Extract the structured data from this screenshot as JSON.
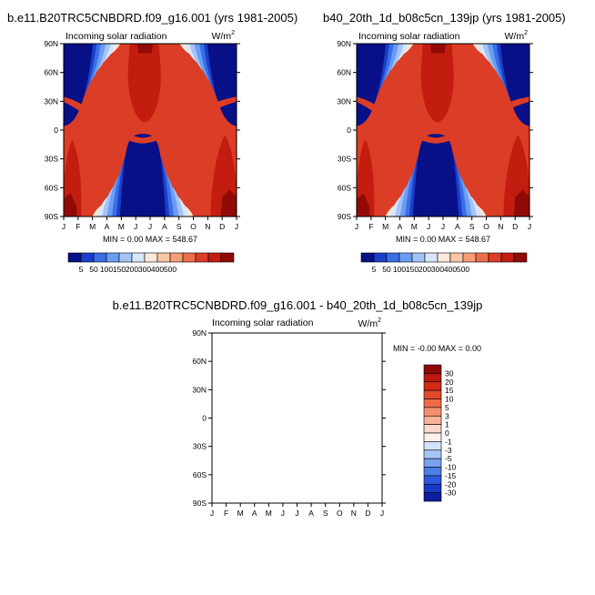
{
  "chart_data": [
    {
      "type": "heatmap",
      "title": "b.e11.B20TRC5CNBDRD.f09_g16.001 (yrs 1981-2005)",
      "subtitle": "Incoming solar radiation",
      "units": "W/m",
      "units_sup": "2",
      "x_ticks": [
        "J",
        "F",
        "M",
        "A",
        "M",
        "J",
        "J",
        "A",
        "S",
        "O",
        "N",
        "D",
        "J"
      ],
      "y_ticks": [
        "90N",
        "60N",
        "30N",
        "0",
        "30S",
        "60S",
        "90S"
      ],
      "stats": "MIN =   0.00 MAX = 548.67",
      "min": 0.0,
      "max": 548.67,
      "colorbar": {
        "orientation": "horizontal",
        "labels": [
          "5",
          "50",
          "100",
          "150",
          "200",
          "300",
          "400",
          "500"
        ],
        "colors": [
          "#081088",
          "#1a3ec8",
          "#3a6ee6",
          "#6b9df2",
          "#a4c4f8",
          "#d8e6fc",
          "#fce8d8",
          "#f9c7a6",
          "#f59e77",
          "#ec6f4a",
          "#dc3d26",
          "#c21d0f",
          "#920a06"
        ]
      }
    },
    {
      "type": "heatmap",
      "title": "b40_20th_1d_b08c5cn_139jp (yrs 1981-2005)",
      "subtitle": "Incoming solar radiation",
      "units": "W/m",
      "units_sup": "2",
      "x_ticks": [
        "J",
        "F",
        "M",
        "A",
        "M",
        "J",
        "J",
        "A",
        "S",
        "O",
        "N",
        "D",
        "J"
      ],
      "y_ticks": [
        "90N",
        "60N",
        "30N",
        "0",
        "30S",
        "60S",
        "90S"
      ],
      "stats": "MIN =   0.00 MAX = 548.67",
      "min": 0.0,
      "max": 548.67,
      "colorbar": {
        "orientation": "horizontal",
        "labels": [
          "5",
          "50",
          "100",
          "150",
          "200",
          "300",
          "400",
          "500"
        ],
        "colors": [
          "#081088",
          "#1a3ec8",
          "#3a6ee6",
          "#6b9df2",
          "#a4c4f8",
          "#d8e6fc",
          "#fce8d8",
          "#f9c7a6",
          "#f59e77",
          "#ec6f4a",
          "#dc3d26",
          "#c21d0f",
          "#920a06"
        ]
      }
    },
    {
      "type": "heatmap",
      "title": "b.e11.B20TRC5CNBDRD.f09_g16.001 - b40_20th_1d_b08c5cn_139jp",
      "subtitle": "Incoming solar radiation",
      "units": "W/m",
      "units_sup": "2",
      "x_ticks": [
        "J",
        "F",
        "M",
        "A",
        "M",
        "J",
        "J",
        "A",
        "S",
        "O",
        "N",
        "D",
        "J"
      ],
      "y_ticks": [
        "90N",
        "60N",
        "30N",
        "0",
        "30S",
        "60S",
        "90S"
      ],
      "stats": "MIN =  -0.00 MAX =   0.00",
      "min": -0.0,
      "max": 0.0,
      "colorbar": {
        "orientation": "vertical",
        "labels": [
          "30",
          "20",
          "15",
          "10",
          "5",
          "3",
          "1",
          "0",
          "-1",
          "-3",
          "-5",
          "-10",
          "-15",
          "-20",
          "-30"
        ],
        "colors": [
          "#8a0a06",
          "#b81a0e",
          "#d22a16",
          "#e24a2c",
          "#ed6d4b",
          "#f4906e",
          "#f8b39a",
          "#fbd7c8",
          "#fdf0ea",
          "#d4e3fb",
          "#a8c4f5",
          "#7aa2ef",
          "#4f7ee8",
          "#2c58dc",
          "#1638c4",
          "#0a1ea0"
        ]
      }
    }
  ]
}
